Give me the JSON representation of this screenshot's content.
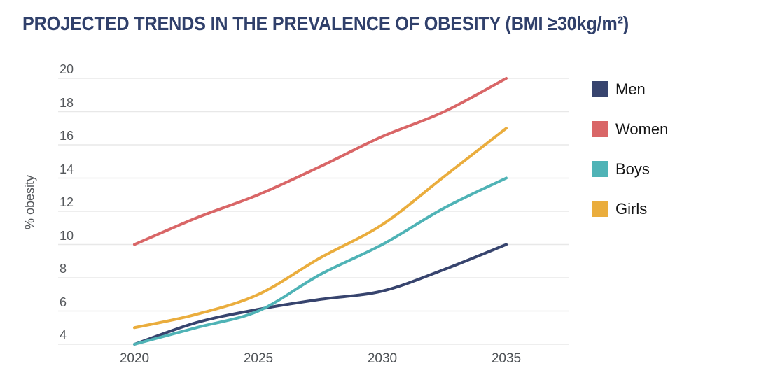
{
  "title": "PROJECTED TRENDS IN THE PREVALENCE OF OBESITY (BMI ≥30kg/m²)",
  "chart_data": {
    "type": "line",
    "title": "PROJECTED TRENDS IN THE PREVALENCE OF OBESITY (BMI ≥30kg/m²)",
    "xlabel": "",
    "ylabel": "% obesity",
    "xlim": [
      2020,
      2035
    ],
    "ylim": [
      4,
      20
    ],
    "x_ticks": [
      2020,
      2025,
      2030,
      2035
    ],
    "y_ticks": [
      4,
      6,
      8,
      10,
      12,
      14,
      16,
      18,
      20
    ],
    "grid": true,
    "legend_position": "right",
    "x": [
      2020,
      2022.5,
      2025,
      2027.5,
      2030,
      2032.5,
      2035
    ],
    "series": [
      {
        "name": "Men",
        "color": "#37446E",
        "values": [
          4,
          5.3,
          6.1,
          6.7,
          7.2,
          8.5,
          10
        ]
      },
      {
        "name": "Women",
        "color": "#D96667",
        "values": [
          10,
          11.6,
          13,
          14.7,
          16.5,
          18,
          20
        ]
      },
      {
        "name": "Boys",
        "color": "#4FB3B6",
        "values": [
          4,
          5,
          6,
          8.2,
          10,
          12.2,
          14
        ]
      },
      {
        "name": "Girls",
        "color": "#EAAD3D",
        "values": [
          5,
          5.8,
          7,
          9.2,
          11.2,
          14.1,
          17
        ]
      }
    ]
  },
  "colors": {
    "title": "#30406B",
    "grid": "#e8e8e8",
    "y_tick_text": "#55585c",
    "x_tick_text": "#4e5256",
    "legend_text": "#141414",
    "background": "#ffffff"
  }
}
